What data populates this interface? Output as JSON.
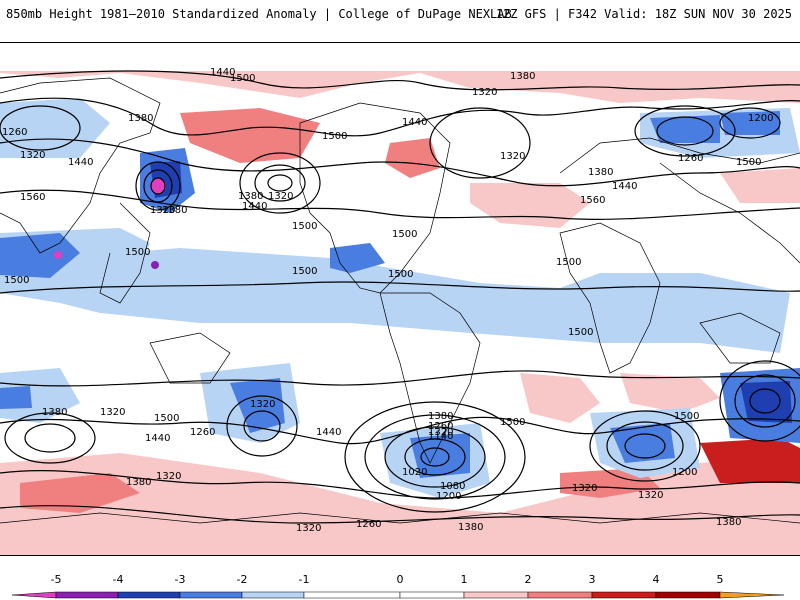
{
  "header": {
    "title": "850mb Height 1981–2010 Standardized Anomaly | College of DuPage NEXLAB",
    "run_info": "12Z GFS | F342 Valid: 18Z SUN NOV 30 2025"
  },
  "colors": {
    "neg5": "#e040c0",
    "neg4": "#8a1fb0",
    "neg3": "#1f3fb0",
    "neg2": "#4a7de0",
    "neg1": "#b8d4f4",
    "zero": "#ffffff",
    "pos1": "#f8c8c8",
    "pos2": "#f08080",
    "pos3": "#c81e1e",
    "pos4": "#a00000",
    "pos5": "#f0a020",
    "contour": "#000000"
  },
  "colorbar": {
    "ticks": [
      "-5",
      "-4",
      "-3",
      "-2",
      "-1",
      "0",
      "1",
      "2",
      "3",
      "4",
      "5"
    ]
  },
  "contour_labels": [
    {
      "text": "1440"
    },
    {
      "text": "1380"
    },
    {
      "text": "1320"
    },
    {
      "text": "1500"
    },
    {
      "text": "1260"
    },
    {
      "text": "1380"
    },
    {
      "text": "1320"
    },
    {
      "text": "1440"
    },
    {
      "text": "1560"
    },
    {
      "text": "1500"
    },
    {
      "text": "1380"
    },
    {
      "text": "1320"
    },
    {
      "text": "1440"
    },
    {
      "text": "1500"
    },
    {
      "text": "1500"
    },
    {
      "text": "1440"
    },
    {
      "text": "1320"
    },
    {
      "text": "1380"
    },
    {
      "text": "1500"
    },
    {
      "text": "1500"
    },
    {
      "text": "1500"
    },
    {
      "text": "1380"
    },
    {
      "text": "1320"
    },
    {
      "text": "1260"
    },
    {
      "text": "1140"
    },
    {
      "text": "1080"
    },
    {
      "text": "1020"
    },
    {
      "text": "1200"
    },
    {
      "text": "1380"
    },
    {
      "text": "1320"
    },
    {
      "text": "1440"
    },
    {
      "text": "1500"
    },
    {
      "text": "1200"
    },
    {
      "text": "1320"
    },
    {
      "text": "1380"
    },
    {
      "text": "1260"
    },
    {
      "text": "1320"
    },
    {
      "text": "1440"
    },
    {
      "text": "1380"
    },
    {
      "text": "1320"
    },
    {
      "text": "1500"
    },
    {
      "text": "1320"
    },
    {
      "text": "1200"
    },
    {
      "text": "1260"
    },
    {
      "text": "1500"
    },
    {
      "text": "1560"
    },
    {
      "text": "1500"
    },
    {
      "text": "1500"
    },
    {
      "text": "1500"
    },
    {
      "text": "1320"
    },
    {
      "text": "1380"
    },
    {
      "text": "1440"
    },
    {
      "text": "1320"
    },
    {
      "text": "1380"
    },
    {
      "text": "1260"
    },
    {
      "text": "1500"
    }
  ]
}
